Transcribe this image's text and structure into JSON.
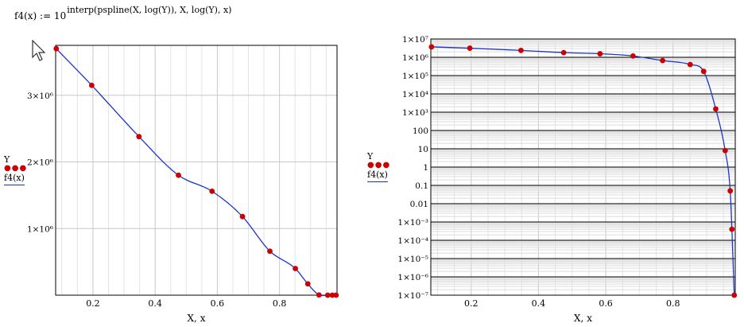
{
  "formula": {
    "lhs": "f4(x) := 10",
    "exponent": "interp(pspline(X, log(Y)), X, log(Y), x)"
  },
  "colors": {
    "curve": "#1a33cc",
    "points": "#cc0000",
    "grid": "#c8c8c8",
    "log_grid_major": "#000000"
  },
  "icons": {
    "cursor": "mouse-pointer-icon"
  },
  "chart_data": [
    {
      "type": "scatter",
      "yscale": "linear",
      "xlabel": "X, x",
      "legend": {
        "series_label": "Y",
        "curve_label": "f4(x)",
        "position": "left"
      },
      "xlim": [
        0.08,
        0.985
      ],
      "ylim": [
        0,
        3750000
      ],
      "xticks": [
        0.2,
        0.4,
        0.6,
        0.8
      ],
      "xtick_labels": [
        "0.2",
        "0.4",
        "0.6",
        "0.8"
      ],
      "yticks": [
        1000000,
        2000000,
        3000000
      ],
      "ytick_labels": [
        "1×10⁶",
        "2×10⁶",
        "3×10⁶"
      ],
      "grid": true,
      "series": [
        {
          "name": "Y",
          "x": [
            0.082,
            0.196,
            0.348,
            0.475,
            0.583,
            0.681,
            0.769,
            0.851,
            0.891,
            0.927,
            0.955,
            0.97,
            0.982
          ],
          "y": [
            3700000,
            3150000,
            2380000,
            1800000,
            1560000,
            1180000,
            660000,
            400000,
            170000,
            3000,
            10,
            0.05,
            0.0005
          ]
        }
      ]
    },
    {
      "type": "scatter",
      "yscale": "log",
      "xlabel": "X, x",
      "legend": {
        "series_label": "Y",
        "curve_label": "f4(x)",
        "position": "left"
      },
      "xlim": [
        0.08,
        0.985
      ],
      "ylim": [
        1e-07,
        10000000.0
      ],
      "xticks": [
        0.2,
        0.4,
        0.6,
        0.8
      ],
      "xtick_labels": [
        "0.2",
        "0.4",
        "0.6",
        "0.8"
      ],
      "yticks": [
        1e-07,
        1e-06,
        1e-05,
        0.0001,
        0.001,
        0.01,
        0.1,
        1,
        10,
        100,
        1000,
        10000,
        100000,
        1000000,
        10000000
      ],
      "ytick_labels": [
        "1×10⁻⁷",
        "1×10⁻⁶",
        "1×10⁻⁵",
        "1×10⁻⁴",
        "1×10⁻³",
        "0.01",
        "0.1",
        "1",
        "10",
        "100",
        "1×10³",
        "1×10⁴",
        "1×10⁵",
        "1×10⁶",
        "1×10⁷"
      ],
      "grid": true,
      "series": [
        {
          "name": "Y",
          "x": [
            0.082,
            0.196,
            0.348,
            0.475,
            0.583,
            0.681,
            0.769,
            0.851,
            0.891,
            0.927,
            0.955,
            0.97,
            0.975,
            0.982
          ],
          "y": [
            3700000,
            3150000,
            2380000,
            1800000,
            1560000,
            1180000,
            660000,
            400000,
            170000,
            1500,
            8,
            0.05,
            0.0004,
            1e-07
          ]
        }
      ]
    }
  ]
}
